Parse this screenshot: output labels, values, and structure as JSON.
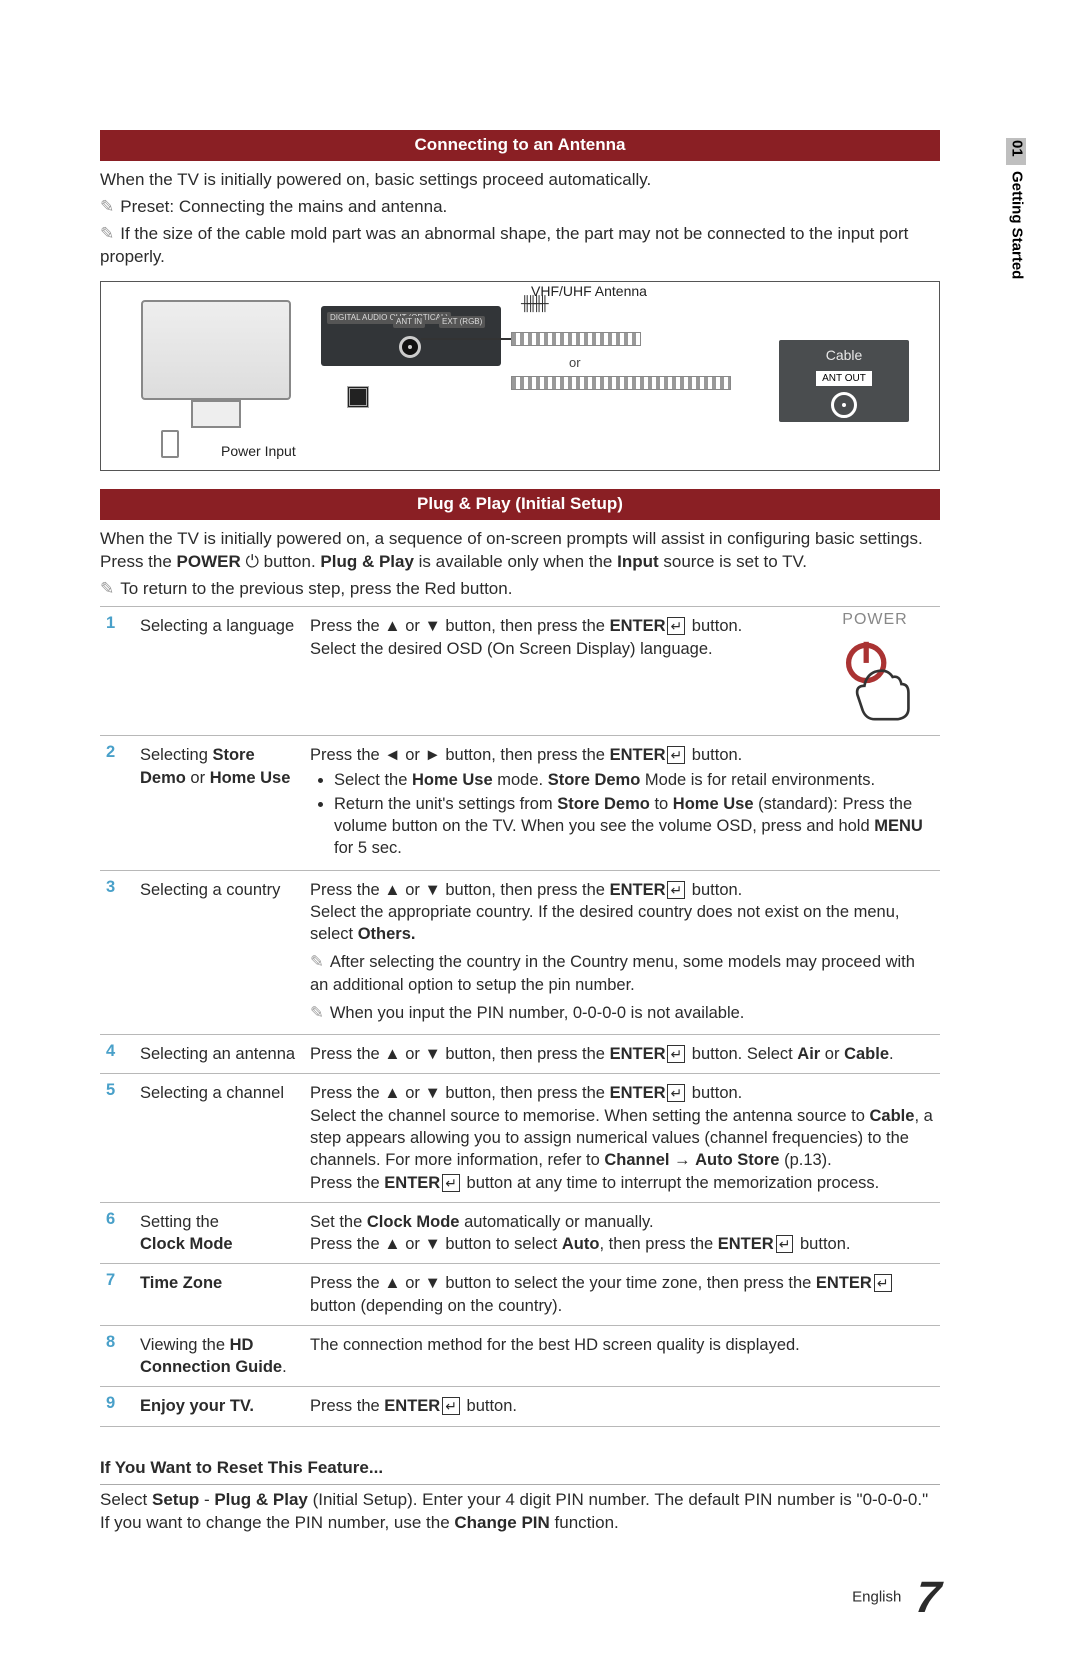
{
  "side": {
    "chapter_num": "01",
    "chapter_label": "Getting Started"
  },
  "sec1": {
    "title": "Connecting to an Antenna",
    "intro": "When the TV is initially powered on, basic settings proceed automatically.",
    "note1": "Preset: Connecting the mains and antenna.",
    "note2": "If the size of the cable mold part was an abnormal shape, the part may not be connected to the input port properly.",
    "diagram": {
      "antenna_label": "VHF/UHF Antenna",
      "power_label": "Power Input",
      "or": "or",
      "port_optical": "DIGITAL AUDIO OUT (OPTICAL)",
      "port_ant": "ANT IN",
      "port_ext": "EXT (RGB)",
      "wall": {
        "title": "Cable",
        "tag": "ANT OUT"
      }
    }
  },
  "sec2": {
    "title": "Plug & Play (Initial Setup)",
    "intro_html": "When the TV is initially powered on, a sequence of on-screen prompts will assist in configuring basic settings. Press the <b>POWER</b> ⏻ button. <b>Plug & Play</b> is available only when the <b>Input</b> source is set to TV.",
    "note": "To return to the previous step, press the Red button.",
    "power_label": "POWER"
  },
  "steps": [
    {
      "n": "1",
      "title_html": "Selecting a language",
      "desc_html": "Press the ▲ or ▼ button, then press the <b>ENTER</b><span class='enter-icon'></span> button.<br>Select the desired OSD (On Screen Display) language."
    },
    {
      "n": "2",
      "title_html": "Selecting <b>Store Demo</b> or <b>Home Use</b>",
      "desc_html": "Press the ◄ or ► button, then press the <b>ENTER</b><span class='enter-icon'></span> button.<ul><li>Select the <b>Home Use</b> mode. <b>Store Demo</b> Mode is for retail environments.</li><li>Return the unit's settings from <b>Store Demo</b> to <b>Home Use</b> (standard): Press the volume button on the TV. When you see the volume OSD, press and hold <b>MENU</b> for 5 sec.</li></ul>"
    },
    {
      "n": "3",
      "title_html": "Selecting a country",
      "desc_html": "Press the ▲ or ▼ button, then press the <b>ENTER</b><span class='enter-icon'></span> button.<br>Select the appropriate country. If the desired country does not exist on the menu, select <b>Others.</b><span class='sub-note'>After selecting the country in the Country menu, some models may proceed with an additional option to setup the pin number.</span><span class='sub-note'>When you input the PIN number, 0-0-0-0 is not available.</span>"
    },
    {
      "n": "4",
      "title_html": "Selecting an antenna",
      "desc_html": "Press the ▲ or ▼ button, then press the <b>ENTER</b><span class='enter-icon'></span> button. Select <b>Air</b> or <b>Cable</b>."
    },
    {
      "n": "5",
      "title_html": "Selecting a channel",
      "desc_html": "Press the ▲ or ▼ button, then press the <b>ENTER</b><span class='enter-icon'></span> button.<br>Select the channel source to memorise. When setting the antenna source to <b>Cable</b>, a step appears allowing you to assign numerical values (channel frequencies) to the channels. For more information, refer to <b>Channel</b> → <b>Auto Store</b> (p.13).<br>Press the <b>ENTER</b><span class='enter-icon'></span> button at any time to interrupt the memorization process."
    },
    {
      "n": "6",
      "title_html": "Setting the<br><b>Clock Mode</b>",
      "desc_html": "Set the <b>Clock Mode</b> automatically or manually.<br>Press the ▲ or ▼ button to select <b>Auto</b>, then press the <b>ENTER</b><span class='enter-icon'></span> button."
    },
    {
      "n": "7",
      "title_html": "<b>Time Zone</b>",
      "desc_html": "Press the ▲ or ▼ button to select the your time zone, then press the <b>ENTER</b><span class='enter-icon'></span> button (depending on the country)."
    },
    {
      "n": "8",
      "title_html": "Viewing the <b>HD Connection Guide</b>.",
      "desc_html": "The connection method for the best HD screen quality is displayed."
    },
    {
      "n": "9",
      "title_html": "<b>Enjoy your TV.</b>",
      "desc_html": "Press the <b>ENTER</b><span class='enter-icon'></span> button."
    }
  ],
  "reset": {
    "heading": "If You Want to Reset This Feature...",
    "body_html": "Select <b>Setup</b> - <b>Plug & Play</b> (Initial Setup). Enter your 4 digit PIN number. The default PIN number is \"0-0-0-0.\" If you want to change the PIN number, use the <b>Change PIN</b> function."
  },
  "footer": {
    "lang": "English",
    "page": "7"
  },
  "colors": {
    "section_bar": "#8a1f24",
    "step_number": "#49a0c9",
    "side_chip": "#bfbfbf",
    "rule": "#b8b8b8"
  }
}
